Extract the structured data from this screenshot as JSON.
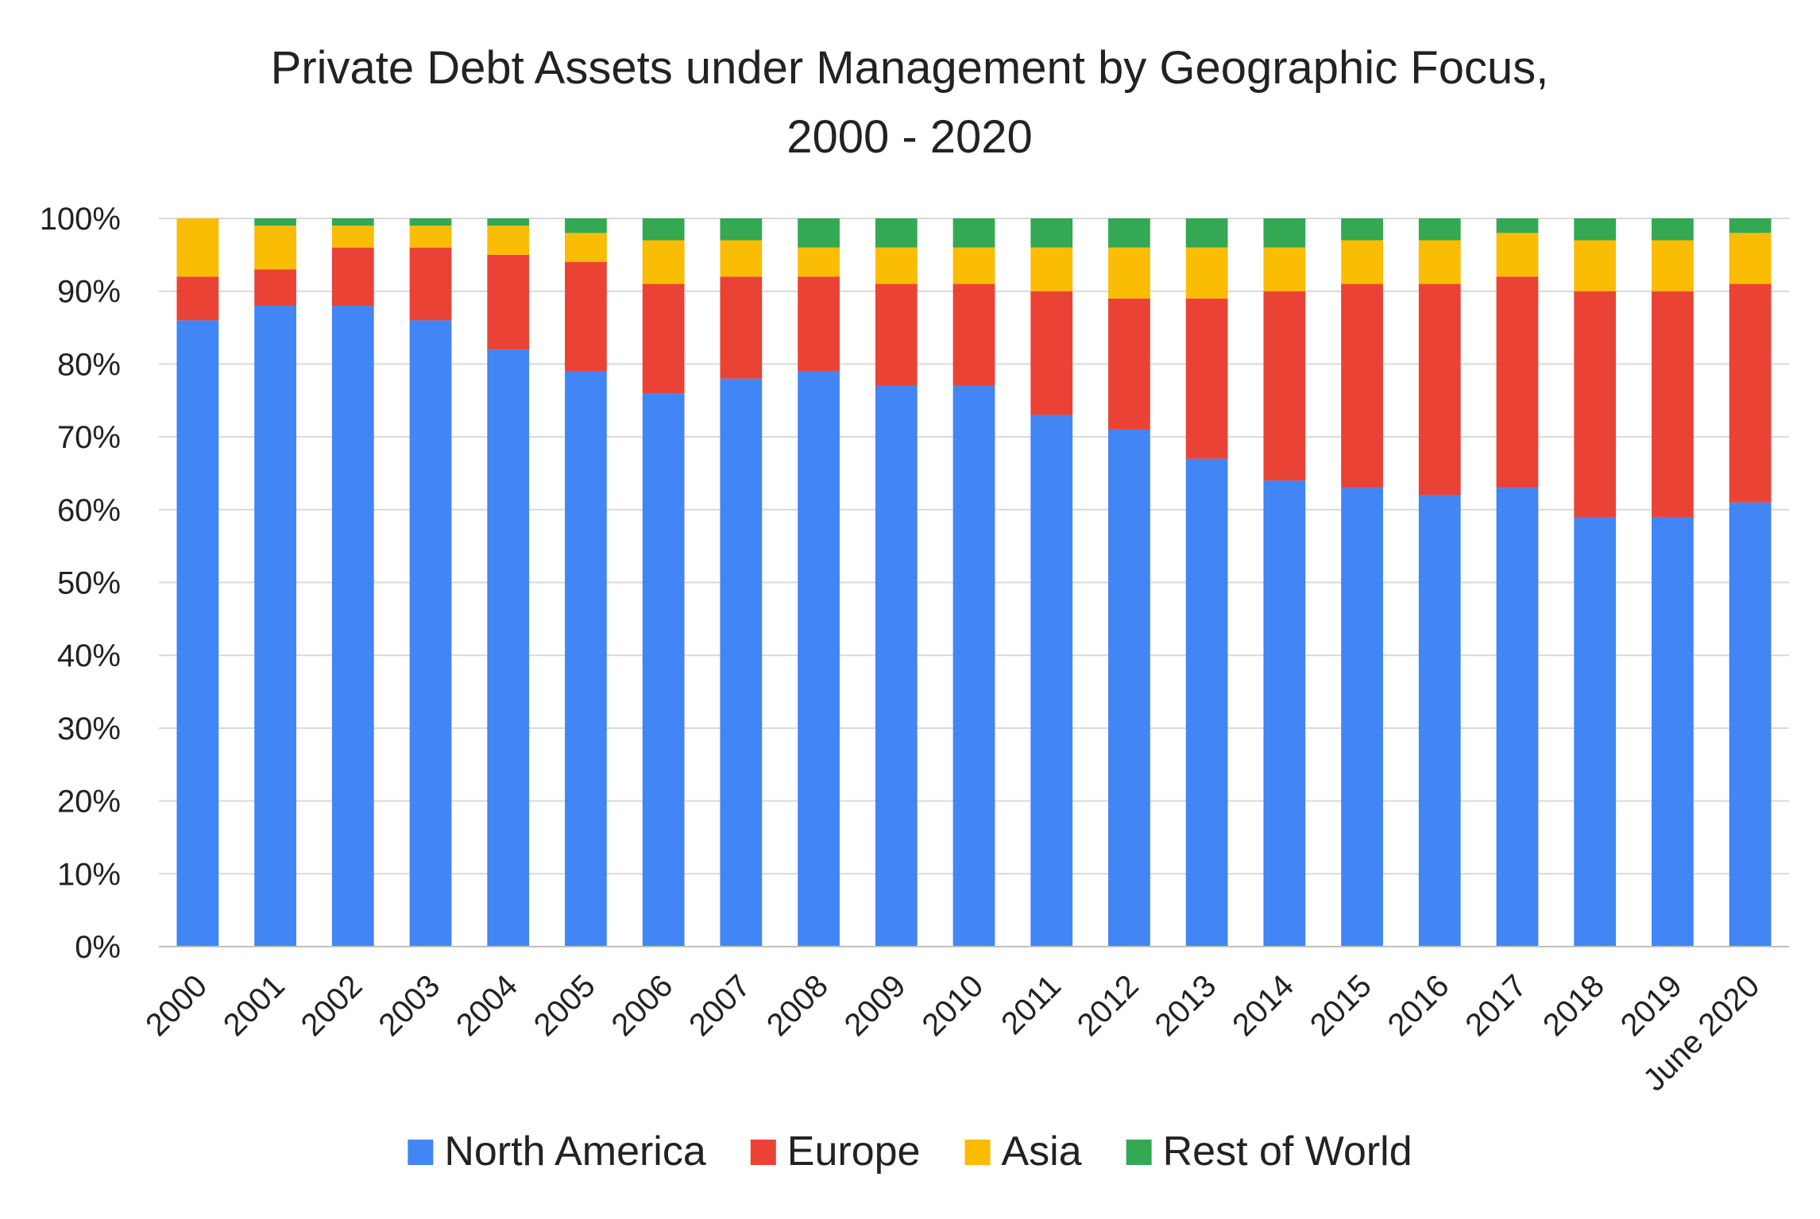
{
  "chart_data": {
    "type": "bar",
    "stacked": true,
    "title": "Private Debt Assets under Management by Geographic Focus,",
    "subtitle": "2000 - 2020",
    "xlabel": "",
    "ylabel": "",
    "ylim": [
      0,
      100
    ],
    "y_ticks": [
      "0%",
      "10%",
      "20%",
      "30%",
      "40%",
      "50%",
      "60%",
      "70%",
      "80%",
      "90%",
      "100%"
    ],
    "grid": true,
    "legend_position": "bottom",
    "categories": [
      "2000",
      "2001",
      "2002",
      "2003",
      "2004",
      "2005",
      "2006",
      "2007",
      "2008",
      "2009",
      "2010",
      "2011",
      "2012",
      "2013",
      "2014",
      "2015",
      "2016",
      "2017",
      "2018",
      "2019",
      "June 2020"
    ],
    "series": [
      {
        "name": "North America",
        "color": "#4285f4",
        "values": [
          86,
          88,
          88,
          86,
          82,
          79,
          76,
          78,
          79,
          77,
          77,
          73,
          71,
          67,
          64,
          63,
          62,
          63,
          59,
          59,
          61
        ]
      },
      {
        "name": "Europe",
        "color": "#ea4335",
        "values": [
          6,
          5,
          8,
          10,
          13,
          15,
          15,
          14,
          13,
          14,
          14,
          17,
          18,
          22,
          26,
          28,
          29,
          29,
          31,
          31,
          30
        ]
      },
      {
        "name": "Asia",
        "color": "#fbbc04",
        "values": [
          8,
          6,
          3,
          3,
          4,
          4,
          6,
          5,
          4,
          5,
          5,
          6,
          7,
          7,
          6,
          6,
          6,
          6,
          7,
          7,
          7
        ]
      },
      {
        "name": "Rest of World",
        "color": "#34a853",
        "values": [
          0,
          1,
          1,
          1,
          1,
          2,
          3,
          3,
          4,
          4,
          4,
          4,
          4,
          4,
          4,
          3,
          3,
          2,
          3,
          3,
          2
        ]
      }
    ]
  }
}
